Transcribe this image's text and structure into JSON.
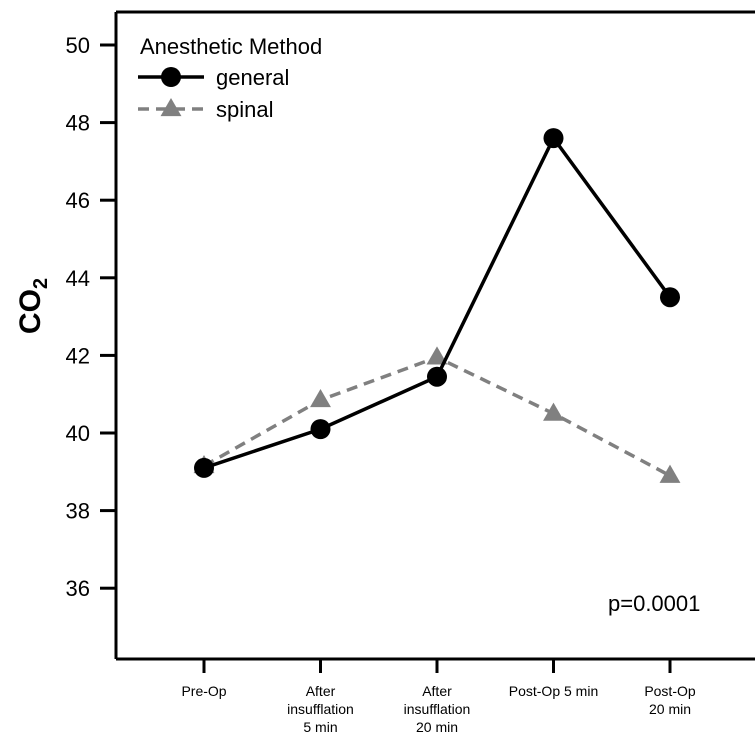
{
  "chart_data": {
    "type": "line",
    "ylabel": "CO",
    "ylabel_sub": "2",
    "xlabel": "",
    "ylim": [
      34.5,
      51
    ],
    "yticks": [
      36,
      38,
      40,
      42,
      44,
      46,
      48,
      50
    ],
    "categories": [
      [
        "Pre-Op"
      ],
      [
        "After",
        "insufflation",
        "5 min"
      ],
      [
        "After",
        "insufflation",
        "20 min"
      ],
      [
        "Post-Op 5 min"
      ],
      [
        "Post-Op",
        "20 min"
      ]
    ],
    "legend": {
      "title": "Anesthetic Method",
      "position": "top-left"
    },
    "annotation": "p=0.0001",
    "series": [
      {
        "name": "general",
        "values": [
          39.1,
          40.1,
          41.45,
          47.6,
          43.5
        ],
        "color": "#000000",
        "marker": "circle",
        "dash": "solid"
      },
      {
        "name": "spinal",
        "values": [
          39.15,
          40.85,
          41.95,
          40.5,
          38.9
        ],
        "color": "#808080",
        "marker": "triangle",
        "dash": "dashed"
      }
    ]
  }
}
